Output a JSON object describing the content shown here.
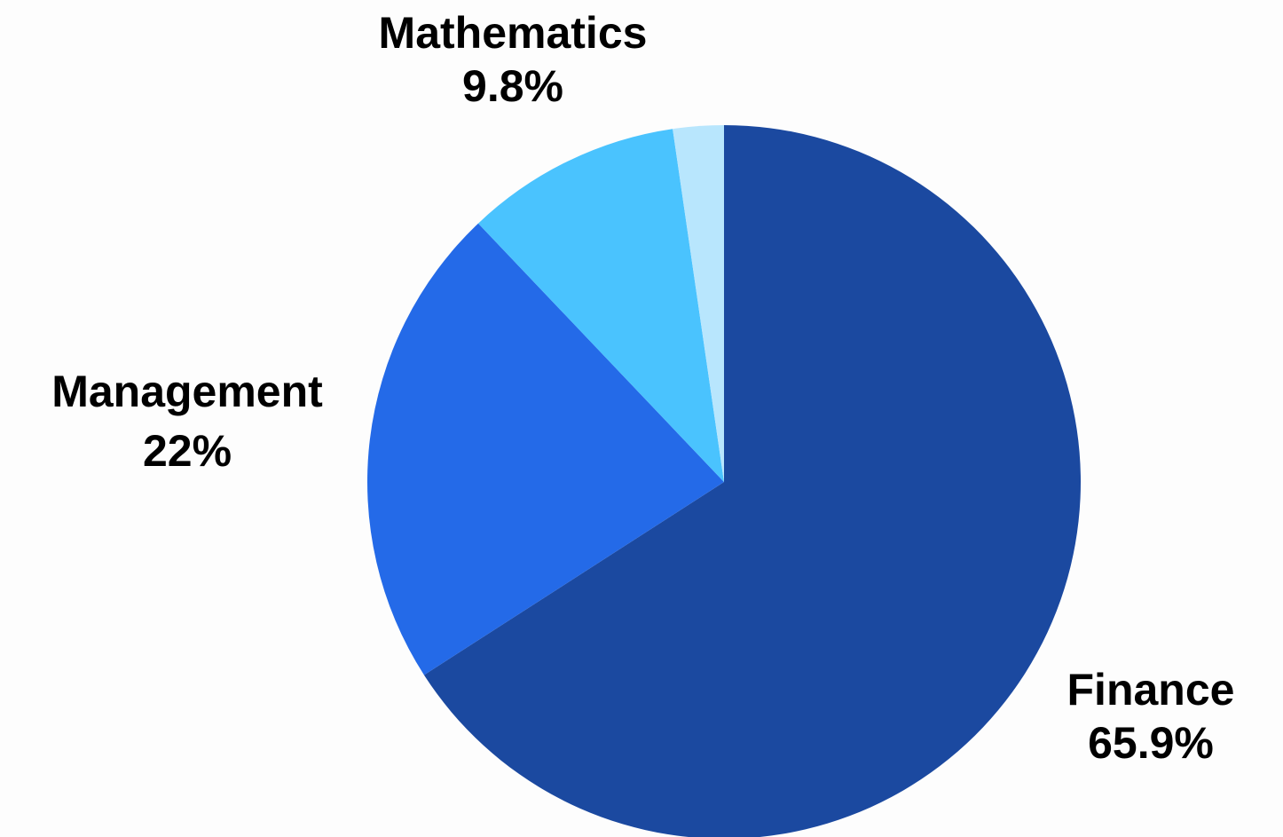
{
  "chart_data": {
    "type": "pie",
    "title": "",
    "slices": [
      {
        "label": "Finance",
        "value": 65.9,
        "value_label": "65.9%",
        "color": "#1b49a0",
        "show_label": true
      },
      {
        "label": "Management",
        "value": 22,
        "value_label": "22%",
        "color": "#246ae8",
        "show_label": true
      },
      {
        "label": "Mathematics",
        "value": 9.8,
        "value_label": "9.8%",
        "color": "#4ac3fe",
        "show_label": true
      },
      {
        "label": "",
        "value": 2.3,
        "value_label": "",
        "color": "#b8e6fd",
        "show_label": false
      }
    ],
    "start_angle": "12 o'clock",
    "direction": "clockwise",
    "legend": "none"
  }
}
